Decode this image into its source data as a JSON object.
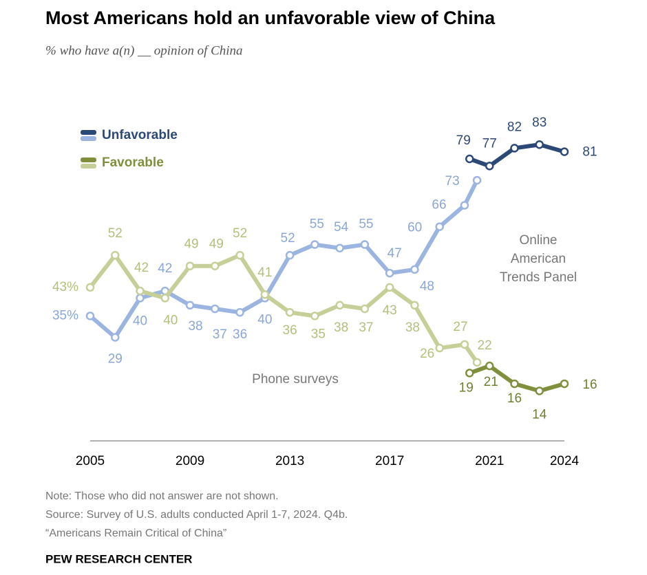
{
  "chart_data": {
    "type": "line",
    "title": "Most Americans hold an unfavorable view of China",
    "subtitle": "% who have a(n) __ opinion of China",
    "x": [
      2005,
      2006,
      2007,
      2008,
      2009,
      2010,
      2011,
      2012,
      2013,
      2014,
      2015,
      2016,
      2017,
      2018,
      2019,
      2020,
      2020.5,
      null,
      2020.2,
      2021,
      2022,
      2023,
      2024
    ],
    "xlim": [
      2005,
      2024
    ],
    "xticks": [
      2005,
      2009,
      2013,
      2017,
      2021,
      2024
    ],
    "ylim": [
      0,
      90
    ],
    "series": [
      {
        "name": "Unfavorable",
        "colors": [
          "#9bb5e0",
          "#2c4877"
        ],
        "label_colors": [
          "#8aa6d6",
          "#2c4877"
        ],
        "values": [
          35,
          29,
          40,
          42,
          38,
          37,
          36,
          40,
          52,
          55,
          54,
          55,
          47,
          48,
          60,
          66,
          73,
          null,
          79,
          77,
          82,
          83,
          81
        ],
        "value_labels": [
          "35%",
          "29",
          "40",
          "42",
          "38",
          "37",
          "36",
          "40",
          "52",
          "55",
          "54",
          "55",
          "47",
          "48",
          "60",
          "66",
          "73",
          null,
          "79",
          "77",
          "82",
          "83",
          "81"
        ]
      },
      {
        "name": "Favorable",
        "colors": [
          "#c5cf97",
          "#7f8f3c"
        ],
        "label_colors": [
          "#b3bf7c",
          "#6f7f30"
        ],
        "values": [
          43,
          52,
          42,
          40,
          49,
          49,
          52,
          41,
          36,
          35,
          38,
          37,
          43,
          38,
          26,
          27,
          22,
          null,
          19,
          21,
          16,
          14,
          16
        ],
        "value_labels": [
          "43%",
          "52",
          "42",
          "40",
          "49",
          "49",
          "52",
          "41",
          "36",
          "35",
          "38",
          "37",
          "43",
          "38",
          "26",
          "27",
          "22",
          null,
          "19",
          "21",
          "16",
          "14",
          "16"
        ]
      }
    ],
    "annotations": [
      "Phone surveys",
      [
        "Online",
        "American",
        "Trends Panel"
      ]
    ],
    "notes": [
      "Note: Those who did not answer are not shown.",
      "Source: Survey of U.S. adults conducted April 1-7, 2024. Q4b.",
      "“Americans Remain Critical of China”"
    ],
    "credit": "PEW RESEARCH CENTER"
  }
}
